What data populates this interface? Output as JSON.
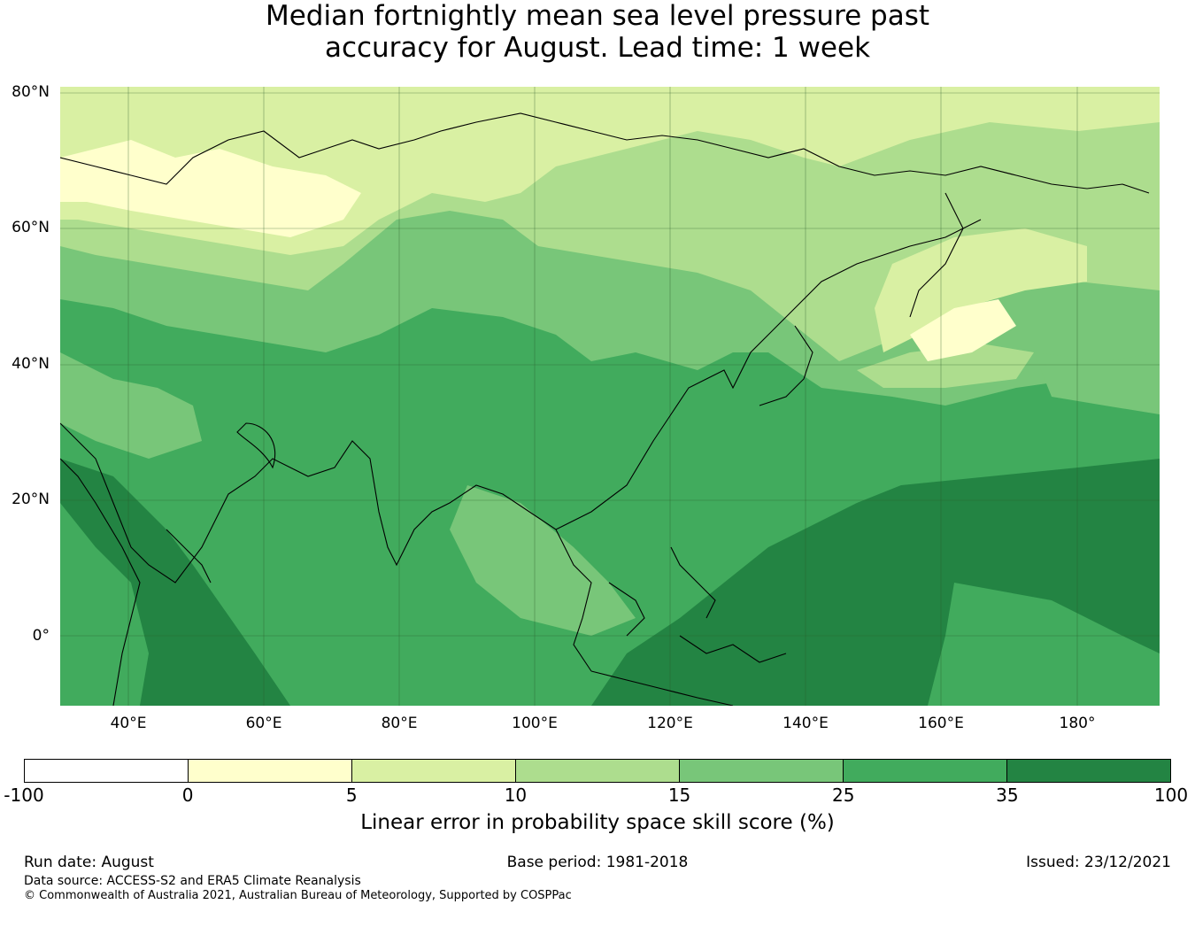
{
  "title_line1": "Median fortnightly mean sea level pressure past",
  "title_line2": "accuracy for August. Lead time: 1 week",
  "lat_labels": [
    "80°N",
    "60°N",
    "40°N",
    "20°N",
    "0°"
  ],
  "lon_labels": [
    "40°E",
    "60°E",
    "80°E",
    "100°E",
    "120°E",
    "140°E",
    "160°E",
    "180°"
  ],
  "colorbar": {
    "colors": [
      "#ffffff",
      "#ffffcc",
      "#d9f0a3",
      "#addd8e",
      "#78c679",
      "#41ab5d",
      "#238443"
    ],
    "ticks": [
      "-100",
      "0",
      "5",
      "10",
      "15",
      "25",
      "35",
      "100"
    ],
    "label": "Linear error in probability space skill score (%)"
  },
  "footer": {
    "run_date": "Run date: August",
    "base_period": "Base period: 1981-2018",
    "issued": "Issued: 23/12/2021",
    "data_source": "Data source: ACCESS-S2 and ERA5 Climate Reanalysis",
    "copyright": "© Commonwealth of Australia 2021, Australian Bureau of Meteorology, Supported by COSPPac"
  }
}
